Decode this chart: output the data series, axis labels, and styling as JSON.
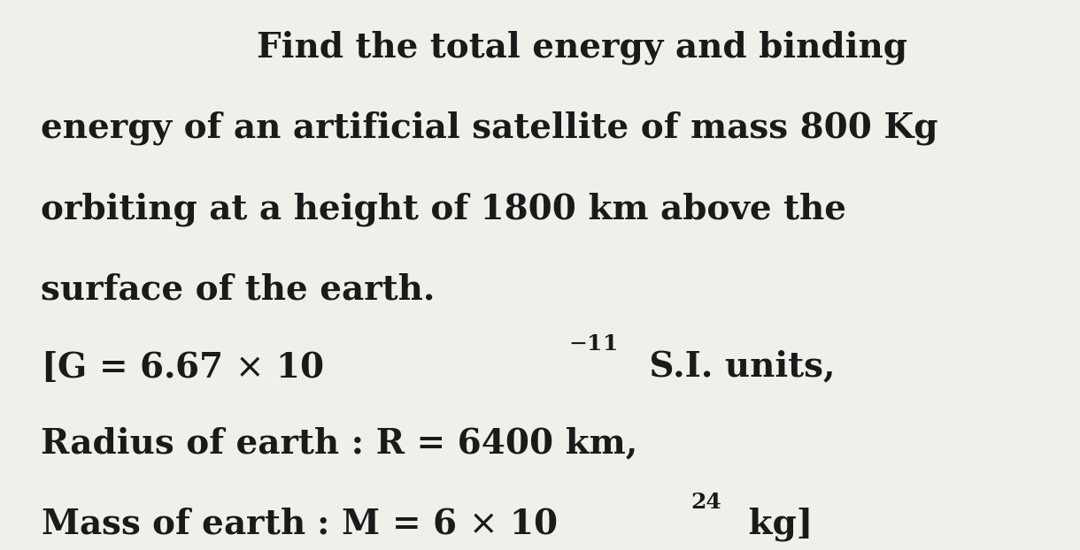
{
  "background_color": "#f0f0eb",
  "text_color": "#1a1a1a",
  "line1": "Find the total energy and binding",
  "line2": "energy of an artificial satellite of mass 800 Kg",
  "line3": "orbiting at a height of 1800 km above the",
  "line4": "surface of the earth.",
  "line6": "Radius of earth : R = 6400 km,",
  "font_size_main": 28,
  "font_family": "serif"
}
